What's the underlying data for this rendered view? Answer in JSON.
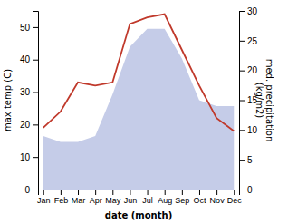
{
  "chart_data": {
    "type": "line",
    "categories": [
      "Jan",
      "Feb",
      "Mar",
      "Apr",
      "May",
      "Jun",
      "Jul",
      "Aug",
      "Sep",
      "Oct",
      "Nov",
      "Dec"
    ],
    "xlabel": "date (month)",
    "ylabel": "max temp (C)",
    "y2label": "med. precipitation\n(kg/m2)",
    "ylim": [
      0,
      55
    ],
    "yticks": [
      0,
      10,
      20,
      30,
      40,
      50
    ],
    "y2lim": [
      0,
      30
    ],
    "y2ticks": [
      0,
      5,
      10,
      15,
      20,
      25,
      30
    ],
    "series": [
      {
        "type": "area",
        "axis": "y2",
        "color": "#c5cce8",
        "values": [
          9,
          8,
          8,
          9,
          16,
          24,
          27,
          27,
          22,
          15,
          14,
          14
        ]
      },
      {
        "type": "line",
        "color": "#c0392b",
        "values": [
          19,
          24,
          33,
          32,
          33,
          51,
          53,
          54,
          43,
          32,
          22,
          18
        ]
      }
    ]
  }
}
